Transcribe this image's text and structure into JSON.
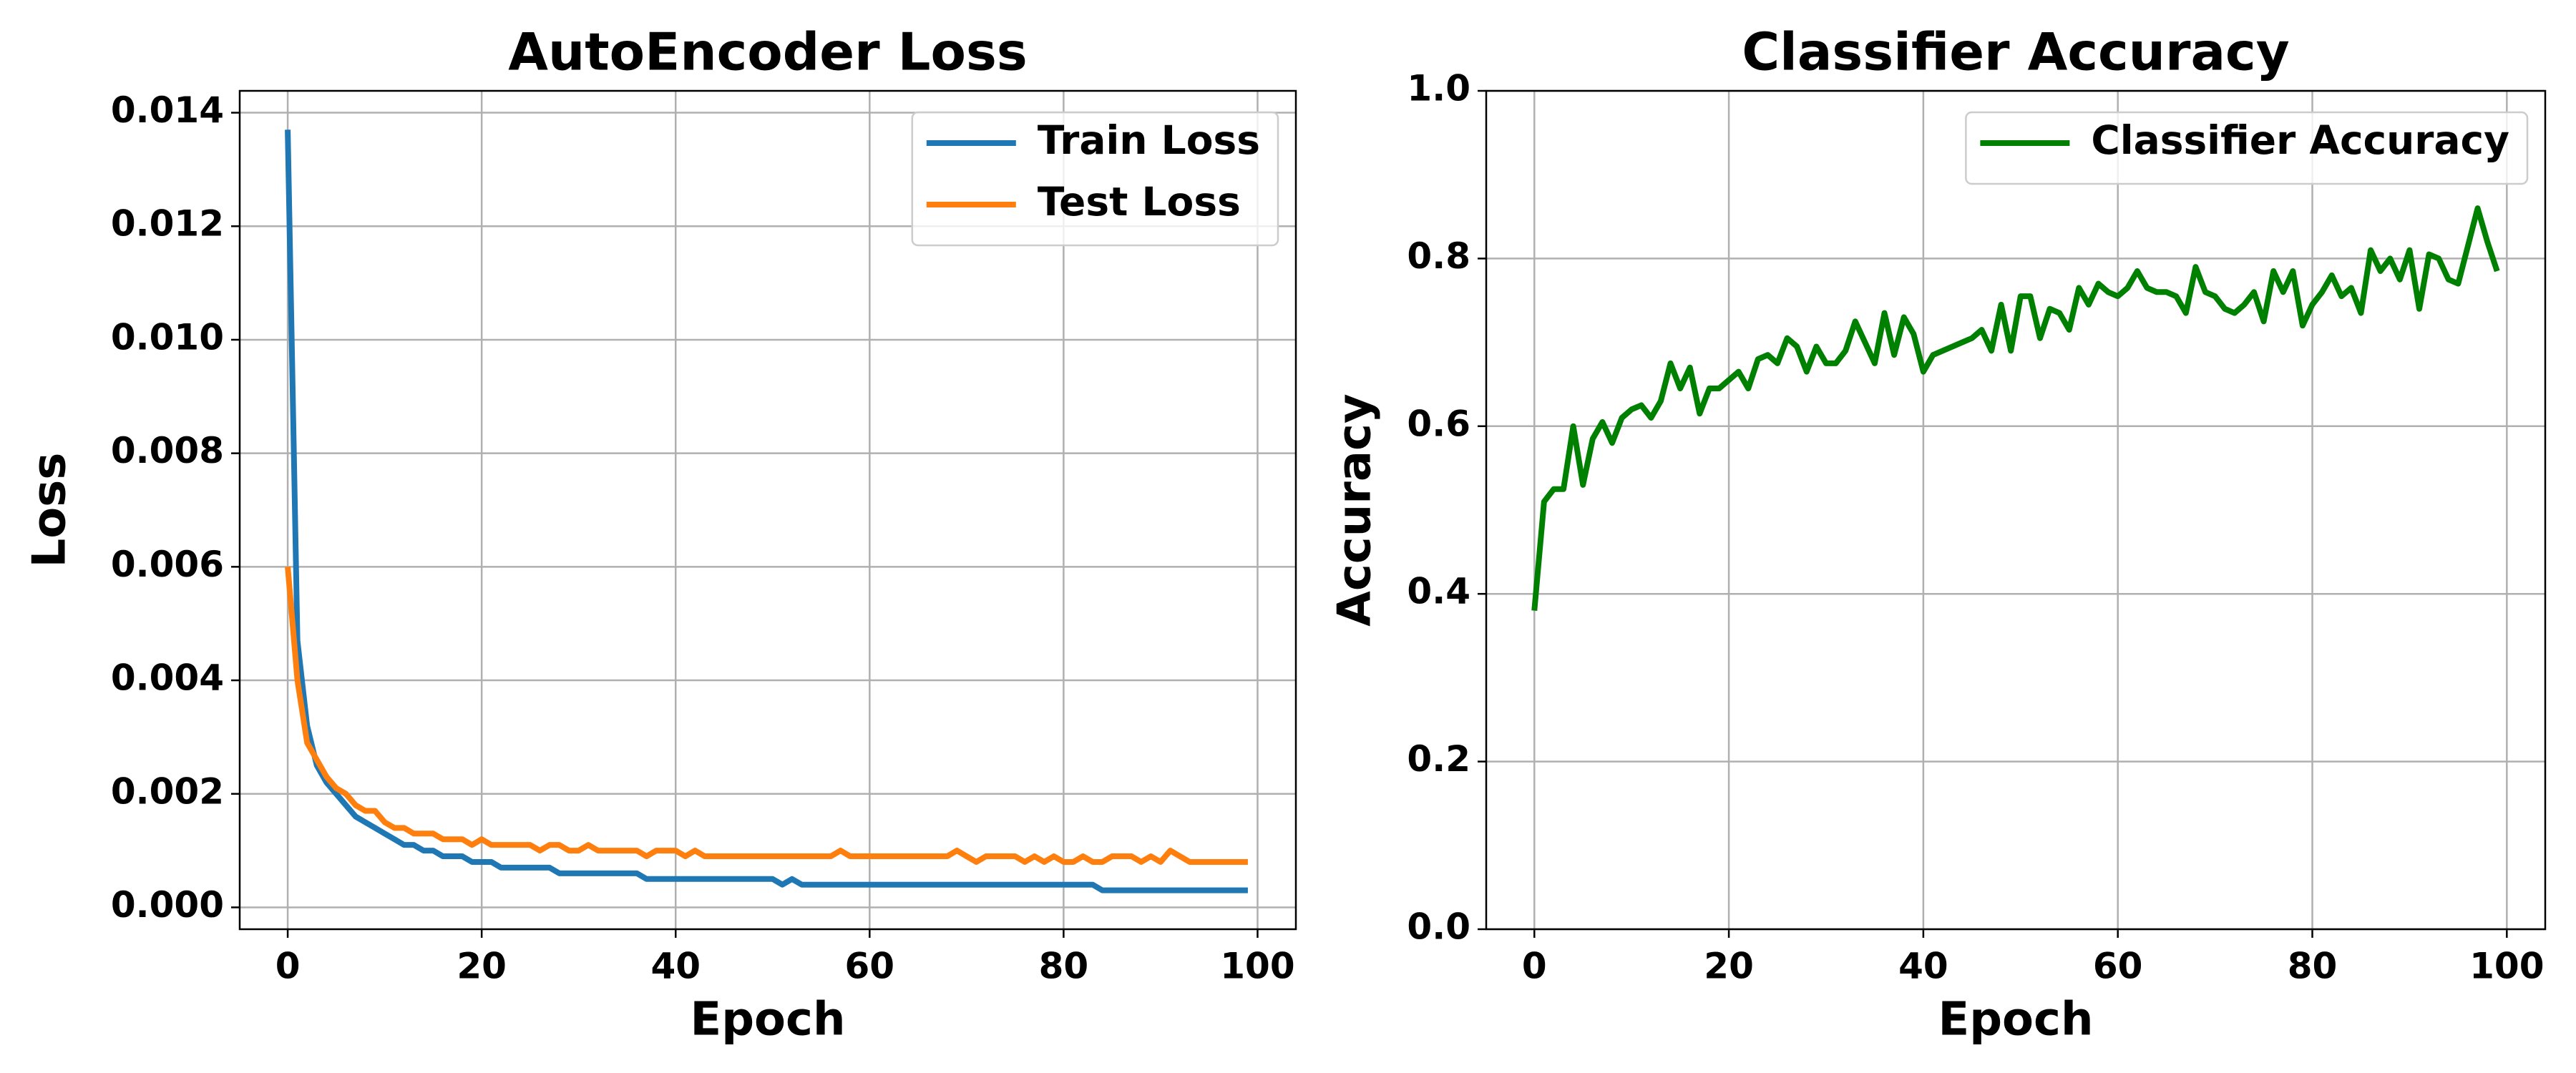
{
  "chart_data": [
    {
      "type": "line",
      "title": "AutoEncoder Loss",
      "xlabel": "Epoch",
      "ylabel": "Loss",
      "x": [
        0,
        1,
        2,
        3,
        4,
        5,
        6,
        7,
        8,
        9,
        10,
        11,
        12,
        13,
        14,
        15,
        16,
        17,
        18,
        19,
        20,
        21,
        22,
        23,
        24,
        25,
        26,
        27,
        28,
        29,
        30,
        31,
        32,
        33,
        34,
        35,
        36,
        37,
        38,
        39,
        40,
        41,
        42,
        43,
        44,
        45,
        46,
        47,
        48,
        49,
        50,
        51,
        52,
        53,
        54,
        55,
        56,
        57,
        58,
        59,
        60,
        61,
        62,
        63,
        64,
        65,
        66,
        67,
        68,
        69,
        70,
        71,
        72,
        73,
        74,
        75,
        76,
        77,
        78,
        79,
        80,
        81,
        82,
        83,
        84,
        85,
        86,
        87,
        88,
        89,
        90,
        91,
        92,
        93,
        94,
        95,
        96,
        97,
        98,
        99
      ],
      "series": [
        {
          "name": "Train Loss",
          "color": "#1f77b4",
          "values": [
            0.0137,
            0.0047,
            0.0032,
            0.0025,
            0.0022,
            0.002,
            0.0018,
            0.0016,
            0.0015,
            0.0014,
            0.0013,
            0.0012,
            0.0011,
            0.0011,
            0.001,
            0.001,
            0.0009,
            0.0009,
            0.0009,
            0.0008,
            0.0008,
            0.0008,
            0.0007,
            0.0007,
            0.0007,
            0.0007,
            0.0007,
            0.0007,
            0.0006,
            0.0006,
            0.0006,
            0.0006,
            0.0006,
            0.0006,
            0.0006,
            0.0006,
            0.0006,
            0.0005,
            0.0005,
            0.0005,
            0.0005,
            0.0005,
            0.0005,
            0.0005,
            0.0005,
            0.0005,
            0.0005,
            0.0005,
            0.0005,
            0.0005,
            0.0005,
            0.0004,
            0.0005,
            0.0004,
            0.0004,
            0.0004,
            0.0004,
            0.0004,
            0.0004,
            0.0004,
            0.0004,
            0.0004,
            0.0004,
            0.0004,
            0.0004,
            0.0004,
            0.0004,
            0.0004,
            0.0004,
            0.0004,
            0.0004,
            0.0004,
            0.0004,
            0.0004,
            0.0004,
            0.0004,
            0.0004,
            0.0004,
            0.0004,
            0.0004,
            0.0004,
            0.0004,
            0.0004,
            0.0004,
            0.0003,
            0.0003,
            0.0003,
            0.0003,
            0.0003,
            0.0003,
            0.0003,
            0.0003,
            0.0003,
            0.0003,
            0.0003,
            0.0003,
            0.0003,
            0.0003,
            0.0003,
            0.0003
          ]
        },
        {
          "name": "Test Loss",
          "color": "#ff7f0e",
          "values": [
            0.006,
            0.004,
            0.0029,
            0.0026,
            0.0023,
            0.0021,
            0.002,
            0.0018,
            0.0017,
            0.0017,
            0.0015,
            0.0014,
            0.0014,
            0.0013,
            0.0013,
            0.0013,
            0.0012,
            0.0012,
            0.0012,
            0.0011,
            0.0012,
            0.0011,
            0.0011,
            0.0011,
            0.0011,
            0.0011,
            0.001,
            0.0011,
            0.0011,
            0.001,
            0.001,
            0.0011,
            0.001,
            0.001,
            0.001,
            0.001,
            0.001,
            0.0009,
            0.001,
            0.001,
            0.001,
            0.0009,
            0.001,
            0.0009,
            0.0009,
            0.0009,
            0.0009,
            0.0009,
            0.0009,
            0.0009,
            0.0009,
            0.0009,
            0.0009,
            0.0009,
            0.0009,
            0.0009,
            0.0009,
            0.001,
            0.0009,
            0.0009,
            0.0009,
            0.0009,
            0.0009,
            0.0009,
            0.0009,
            0.0009,
            0.0009,
            0.0009,
            0.0009,
            0.001,
            0.0009,
            0.0008,
            0.0009,
            0.0009,
            0.0009,
            0.0009,
            0.0008,
            0.0009,
            0.0008,
            0.0009,
            0.0008,
            0.0008,
            0.0009,
            0.0008,
            0.0008,
            0.0009,
            0.0009,
            0.0009,
            0.0008,
            0.0009,
            0.0008,
            0.001,
            0.0009,
            0.0008,
            0.0008,
            0.0008,
            0.0008,
            0.0008,
            0.0008,
            0.0008
          ]
        }
      ],
      "xlim": [
        -4.95,
        103.95
      ],
      "xticks": [
        0,
        20,
        40,
        60,
        80,
        100
      ],
      "ylim": [
        -0.000385,
        0.014385
      ],
      "yticks": [
        {
          "value": 0,
          "label": "0.000"
        },
        {
          "value": 0.002,
          "label": "0.002"
        },
        {
          "value": 0.004,
          "label": "0.004"
        },
        {
          "value": 0.006,
          "label": "0.006"
        },
        {
          "value": 0.008,
          "label": "0.008"
        },
        {
          "value": 0.01,
          "label": "0.010"
        },
        {
          "value": 0.012,
          "label": "0.012"
        },
        {
          "value": 0.014,
          "label": "0.014"
        }
      ],
      "grid": true,
      "legend": "upper right"
    },
    {
      "type": "line",
      "title": "Classifier Accuracy",
      "xlabel": "Epoch",
      "ylabel": "Accuracy",
      "x": [
        0,
        1,
        2,
        3,
        4,
        5,
        6,
        7,
        8,
        9,
        10,
        11,
        12,
        13,
        14,
        15,
        16,
        17,
        18,
        19,
        20,
        21,
        22,
        23,
        24,
        25,
        26,
        27,
        28,
        29,
        30,
        31,
        32,
        33,
        34,
        35,
        36,
        37,
        38,
        39,
        40,
        41,
        42,
        43,
        44,
        45,
        46,
        47,
        48,
        49,
        50,
        51,
        52,
        53,
        54,
        55,
        56,
        57,
        58,
        59,
        60,
        61,
        62,
        63,
        64,
        65,
        66,
        67,
        68,
        69,
        70,
        71,
        72,
        73,
        74,
        75,
        76,
        77,
        78,
        79,
        80,
        81,
        82,
        83,
        84,
        85,
        86,
        87,
        88,
        89,
        90,
        91,
        92,
        93,
        94,
        95,
        96,
        97,
        98,
        99
      ],
      "series": [
        {
          "name": "Classifier Accuracy",
          "color": "#008000",
          "values": [
            0.38,
            0.51,
            0.525,
            0.525,
            0.6,
            0.53,
            0.585,
            0.605,
            0.58,
            0.61,
            0.62,
            0.625,
            0.61,
            0.63,
            0.675,
            0.645,
            0.67,
            0.615,
            0.645,
            0.645,
            0.655,
            0.665,
            0.645,
            0.68,
            0.685,
            0.675,
            0.705,
            0.695,
            0.665,
            0.695,
            0.675,
            0.675,
            0.69,
            0.725,
            0.7,
            0.675,
            0.735,
            0.685,
            0.73,
            0.71,
            0.665,
            0.685,
            0.69,
            0.695,
            0.7,
            0.705,
            0.715,
            0.69,
            0.745,
            0.69,
            0.755,
            0.755,
            0.705,
            0.74,
            0.735,
            0.715,
            0.765,
            0.745,
            0.77,
            0.76,
            0.755,
            0.765,
            0.785,
            0.765,
            0.76,
            0.76,
            0.755,
            0.735,
            0.79,
            0.76,
            0.755,
            0.74,
            0.735,
            0.745,
            0.76,
            0.725,
            0.785,
            0.76,
            0.785,
            0.72,
            0.745,
            0.76,
            0.78,
            0.755,
            0.765,
            0.735,
            0.81,
            0.785,
            0.8,
            0.775,
            0.81,
            0.74,
            0.805,
            0.8,
            0.775,
            0.77,
            0.815,
            0.86,
            0.82,
            0.785
          ]
        }
      ],
      "xlim": [
        -4.95,
        103.95
      ],
      "xticks": [
        0,
        20,
        40,
        60,
        80,
        100
      ],
      "ylim": [
        0,
        1
      ],
      "yticks": [
        {
          "value": 0,
          "label": "0.0"
        },
        {
          "value": 0.2,
          "label": "0.2"
        },
        {
          "value": 0.4,
          "label": "0.4"
        },
        {
          "value": 0.6,
          "label": "0.6"
        },
        {
          "value": 0.8,
          "label": "0.8"
        },
        {
          "value": 1,
          "label": "1.0"
        }
      ],
      "grid": true,
      "legend": "upper right"
    }
  ]
}
